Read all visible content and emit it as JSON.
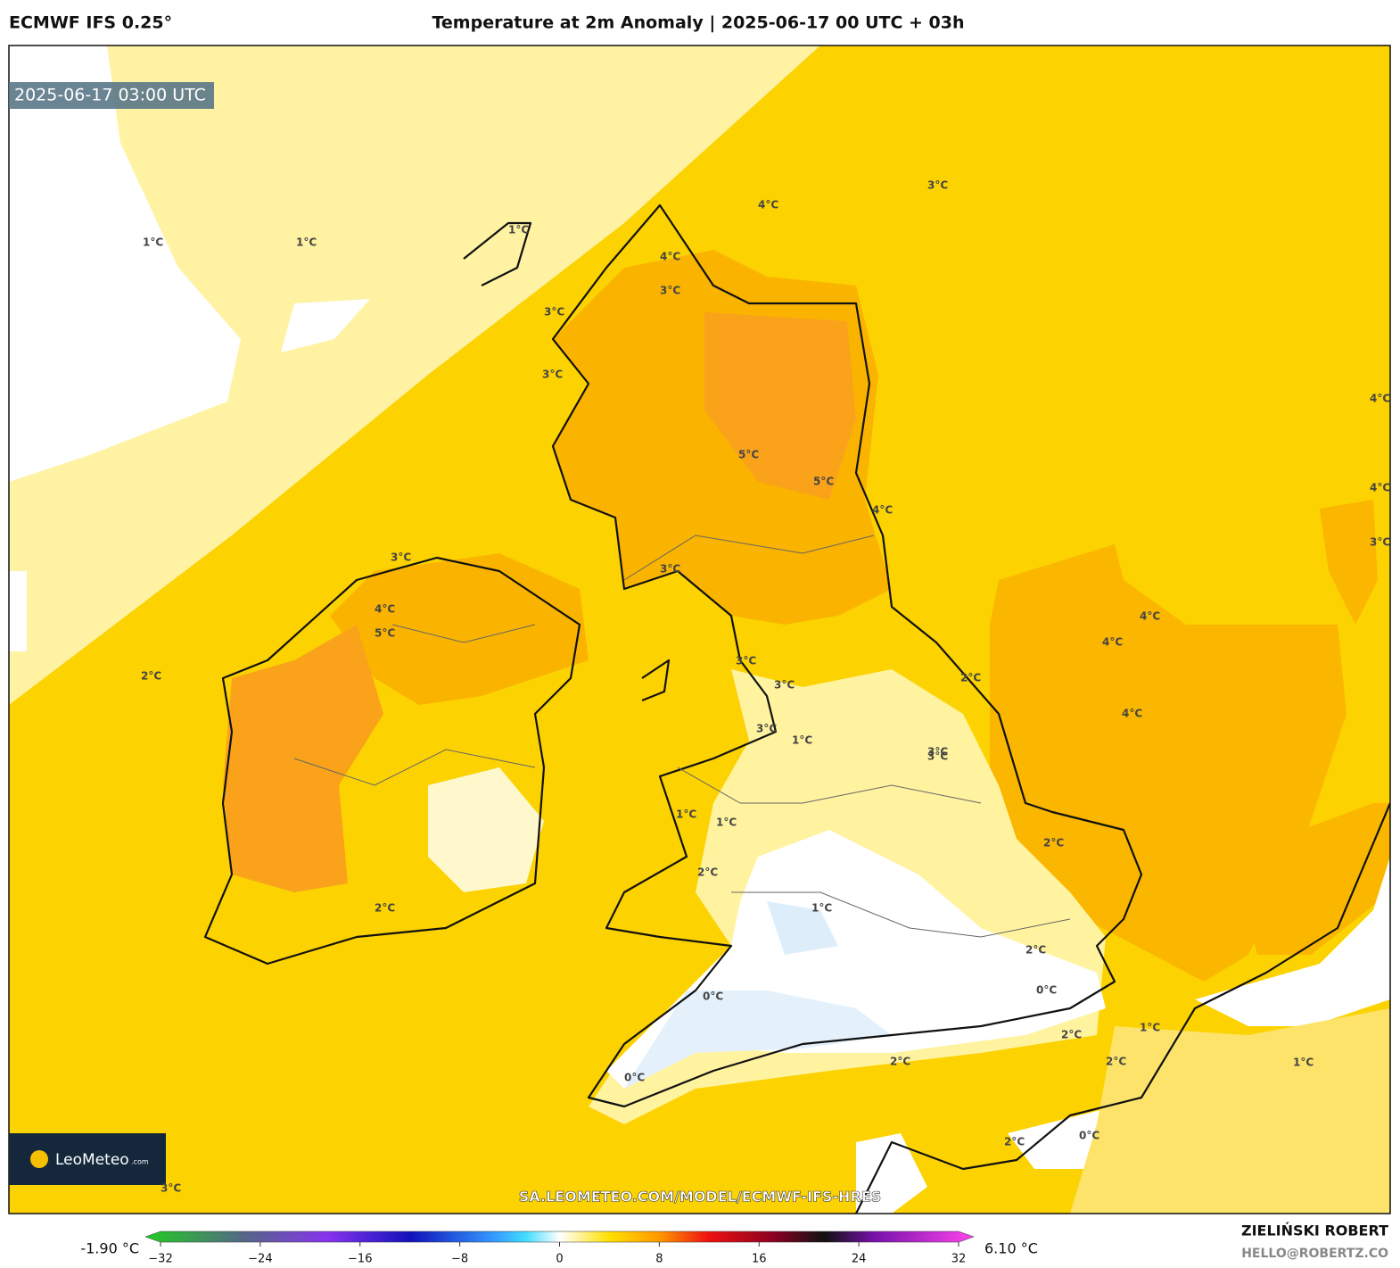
{
  "header": {
    "model": "ECMWF IFS 0.25°",
    "title": "Temperature at 2m Anomaly | 2025-06-17 00 UTC + 03h"
  },
  "map": {
    "valid_time": "2025-06-17 03:00 UTC",
    "source_url": "SA.LEOMETEO.COM/MODEL/ECMWF-IFS-HRES",
    "logo": {
      "name": "LeoMeteo",
      "suffix": ".com"
    },
    "contour_labels": [
      "1°C",
      "1°C",
      "1°C",
      "4°C",
      "3°C",
      "3°C",
      "3°C",
      "3°C",
      "4°C",
      "5°C",
      "5°C",
      "4°C",
      "3°C",
      "4°C",
      "5°C",
      "2°C",
      "3°C",
      "3°C",
      "2°C",
      "3°C",
      "3°C",
      "1°C",
      "2°C",
      "1°C",
      "2°C",
      "1°C",
      "0°C",
      "0°C",
      "2°C",
      "2°C",
      "0°C",
      "2°C",
      "2°C",
      "1°C",
      "4°C",
      "4°C",
      "4°C",
      "4°C",
      "4°C",
      "3°C",
      "3°C",
      "3°C",
      "1°C",
      "1°C",
      "0°C",
      "2°C",
      "3°C",
      "2°C"
    ]
  },
  "colorbar": {
    "min_label": "-1.90 °C",
    "max_label": "6.10 °C",
    "range": [
      -32,
      32
    ],
    "ticks": [
      {
        "value": -32,
        "label": "−32"
      },
      {
        "value": -24,
        "label": "−24"
      },
      {
        "value": -16,
        "label": "−16"
      },
      {
        "value": -8,
        "label": "−8"
      },
      0,
      8,
      16,
      24,
      32
    ]
  },
  "footer": {
    "author": "ZIELIŃSKI ROBERT",
    "contact": "HELLO@ROBERTZ.CO"
  }
}
